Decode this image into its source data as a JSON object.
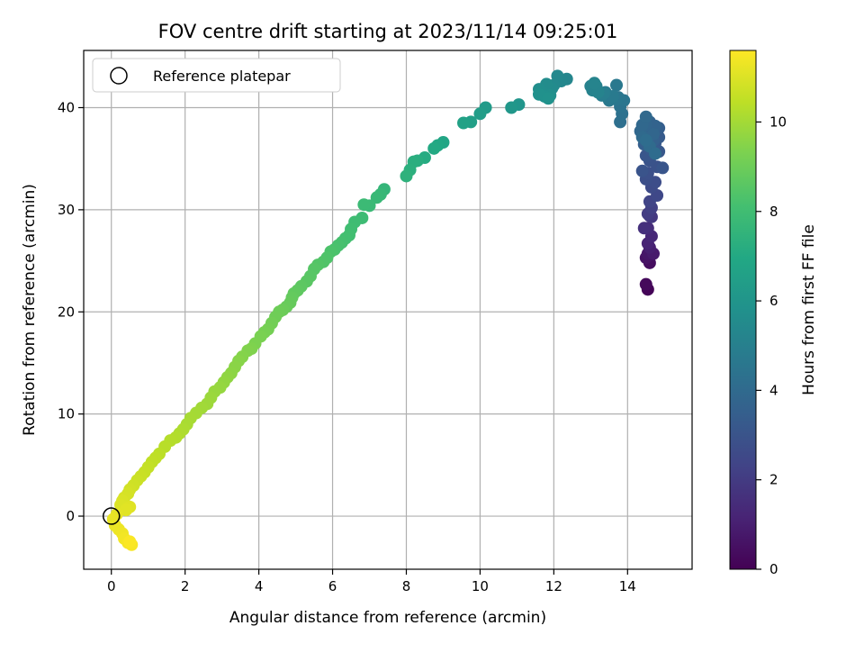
{
  "chart_data": {
    "type": "scatter",
    "title": "FOV centre drift starting at 2023/11/14 09:25:01",
    "xlabel": "Angular distance from reference (arcmin)",
    "ylabel": "Rotation from reference (arcmin)",
    "xlim": [
      -0.75,
      15.75
    ],
    "ylim": [
      -5.2,
      45.6
    ],
    "xticks": [
      0,
      2,
      4,
      6,
      8,
      10,
      12,
      14
    ],
    "yticks": [
      0,
      10,
      20,
      30,
      40
    ],
    "grid": true,
    "legend": {
      "placement": "top-left",
      "entries": [
        "Reference platepar"
      ]
    },
    "colorbar": {
      "label": "Hours from first FF file",
      "range": [
        0,
        11.6
      ],
      "ticks": [
        0,
        2,
        4,
        6,
        8,
        10
      ],
      "colormap": "viridis"
    },
    "reference_point": {
      "x": 0,
      "y": 0
    },
    "series": [
      {
        "x": [
          14.55,
          14.5,
          14.6,
          14.5,
          14.55,
          14.7,
          14.6,
          14.55,
          14.65,
          14.55,
          14.45,
          14.6,
          14.65,
          14.55,
          14.65,
          14.6,
          14.8,
          14.65,
          14.75,
          14.5,
          14.55,
          14.8,
          14.6,
          14.4,
          14.95,
          14.5,
          14.85,
          14.65,
          14.75,
          14.85,
          14.55,
          14.7,
          14.85,
          14.45,
          14.7,
          14.6,
          14.75,
          14.45,
          14.5,
          14.7,
          14.35,
          14.4,
          14.5,
          14.4,
          14.6,
          14.75,
          14.5,
          13.8,
          13.85,
          13.8,
          13.9,
          13.75,
          13.7,
          13.7,
          13.5,
          13.6,
          13.4,
          13.3,
          13.35,
          13.15,
          13.15,
          13.0,
          13.05,
          13.2,
          13.1,
          12.35,
          12.2,
          12.1,
          12.0,
          11.95,
          11.8,
          11.7,
          11.6,
          11.9,
          11.75,
          11.6,
          11.85,
          11.05,
          10.85,
          10.15,
          10.0,
          9.75,
          9.55,
          9.0,
          8.85,
          8.75,
          8.5,
          8.3,
          8.2,
          8.1,
          8.0,
          7.4,
          7.3,
          7.2,
          7.0,
          6.85,
          6.8,
          6.6,
          6.5,
          6.45,
          6.35,
          6.25,
          6.15,
          6.05,
          5.95,
          5.85,
          5.75,
          5.6,
          5.5,
          5.4,
          5.3,
          5.15,
          5.05,
          4.95,
          4.9,
          4.85,
          4.75,
          4.65,
          4.55,
          4.45,
          4.35,
          4.25,
          4.15,
          4.05,
          3.9,
          3.8,
          3.7,
          3.55,
          3.45,
          3.35,
          3.25,
          3.15,
          3.05,
          2.95,
          2.8,
          2.7,
          2.6,
          2.45,
          2.3,
          2.15,
          2.05,
          1.95,
          1.85,
          1.75,
          1.6,
          1.45,
          1.3,
          1.2,
          1.1,
          1.0,
          0.9,
          0.8,
          0.7,
          0.6,
          0.5,
          0.45,
          0.35,
          0.3,
          0.25,
          0.5,
          0.4,
          0.15,
          0.05,
          0.1,
          0.2,
          0.3,
          0.35,
          0.45,
          0.55,
          0.5
        ],
        "y": [
          22.2,
          22.7,
          24.8,
          25.3,
          25.7,
          25.7,
          26.3,
          26.7,
          27.4,
          28.2,
          28.2,
          29.4,
          29.3,
          29.6,
          30.2,
          30.8,
          31.4,
          32.2,
          32.7,
          33.0,
          33.6,
          34.2,
          34.8,
          33.8,
          34.1,
          35.3,
          35.7,
          35.8,
          36.5,
          37.1,
          37.0,
          37.6,
          38.0,
          36.4,
          36.8,
          38.6,
          38.2,
          37.8,
          38.3,
          37.4,
          37.7,
          38.3,
          39.1,
          37.1,
          36.2,
          35.5,
          36.8,
          38.6,
          39.4,
          40.1,
          40.7,
          41.0,
          40.8,
          42.2,
          40.7,
          41.1,
          41.5,
          41.2,
          41.4,
          41.9,
          42.1,
          42.1,
          41.7,
          41.5,
          42.4,
          42.8,
          42.6,
          43.1,
          42.2,
          41.9,
          42.3,
          41.5,
          41.8,
          41.2,
          41.1,
          41.3,
          40.9,
          40.3,
          40.0,
          40.0,
          39.4,
          38.6,
          38.5,
          36.6,
          36.3,
          36.0,
          35.1,
          34.8,
          34.7,
          33.9,
          33.3,
          32.0,
          31.5,
          31.2,
          30.4,
          30.5,
          29.2,
          28.8,
          28.1,
          27.5,
          27.2,
          26.8,
          26.5,
          26.1,
          25.9,
          25.3,
          24.9,
          24.6,
          24.2,
          23.5,
          23.0,
          22.5,
          22.1,
          21.8,
          21.4,
          20.9,
          20.5,
          20.2,
          20.0,
          19.5,
          18.9,
          18.3,
          18.0,
          17.6,
          16.9,
          16.4,
          16.2,
          15.6,
          15.2,
          14.6,
          14.0,
          13.6,
          13.1,
          12.6,
          12.2,
          11.6,
          11.0,
          10.6,
          10.1,
          9.6,
          9.0,
          8.5,
          8.1,
          7.7,
          7.4,
          6.8,
          6.1,
          5.7,
          5.3,
          4.8,
          4.3,
          3.9,
          3.5,
          3.0,
          2.6,
          2.2,
          1.8,
          1.5,
          1.1,
          0.9,
          0.6,
          0.2,
          -0.3,
          -0.9,
          -1.3,
          -1.7,
          -2.2,
          -2.6,
          -2.8,
          -2.5
        ],
        "hours": [
          0.1,
          0.25,
          0.4,
          0.55,
          0.7,
          0.85,
          1.0,
          1.15,
          1.3,
          1.45,
          1.6,
          1.75,
          1.9,
          2.05,
          2.2,
          2.35,
          2.5,
          2.6,
          2.7,
          2.8,
          2.85,
          2.9,
          2.95,
          3.0,
          3.05,
          3.1,
          3.15,
          3.2,
          3.25,
          3.3,
          3.35,
          3.4,
          3.45,
          3.5,
          3.55,
          3.6,
          3.65,
          3.7,
          3.75,
          3.8,
          3.85,
          3.9,
          3.95,
          4.0,
          4.05,
          4.1,
          4.15,
          4.2,
          4.3,
          4.4,
          4.5,
          4.55,
          4.6,
          4.65,
          4.7,
          4.75,
          4.8,
          4.85,
          4.9,
          4.95,
          5.0,
          5.05,
          5.1,
          5.15,
          5.2,
          5.3,
          5.35,
          5.4,
          5.45,
          5.5,
          5.55,
          5.6,
          5.65,
          5.7,
          5.75,
          5.8,
          5.85,
          6.0,
          6.1,
          6.3,
          6.4,
          6.5,
          6.6,
          6.8,
          6.9,
          7.0,
          7.1,
          7.2,
          7.25,
          7.3,
          7.4,
          7.6,
          7.7,
          7.75,
          7.8,
          7.85,
          7.9,
          7.95,
          8.0,
          8.05,
          8.1,
          8.15,
          8.2,
          8.25,
          8.3,
          8.35,
          8.4,
          8.45,
          8.5,
          8.55,
          8.6,
          8.65,
          8.7,
          8.75,
          8.8,
          8.85,
          8.9,
          8.95,
          9.0,
          9.05,
          9.1,
          9.15,
          9.2,
          9.25,
          9.3,
          9.35,
          9.4,
          9.45,
          9.5,
          9.55,
          9.6,
          9.65,
          9.7,
          9.75,
          9.8,
          9.85,
          9.9,
          9.95,
          10.0,
          10.05,
          10.1,
          10.15,
          10.2,
          10.25,
          10.3,
          10.35,
          10.4,
          10.45,
          10.5,
          10.55,
          10.6,
          10.65,
          10.7,
          10.75,
          10.8,
          10.85,
          10.9,
          10.95,
          11.0,
          11.05,
          11.1,
          11.15,
          11.2,
          11.25,
          11.3,
          11.35,
          11.4,
          11.45,
          11.5,
          11.55
        ]
      }
    ]
  }
}
